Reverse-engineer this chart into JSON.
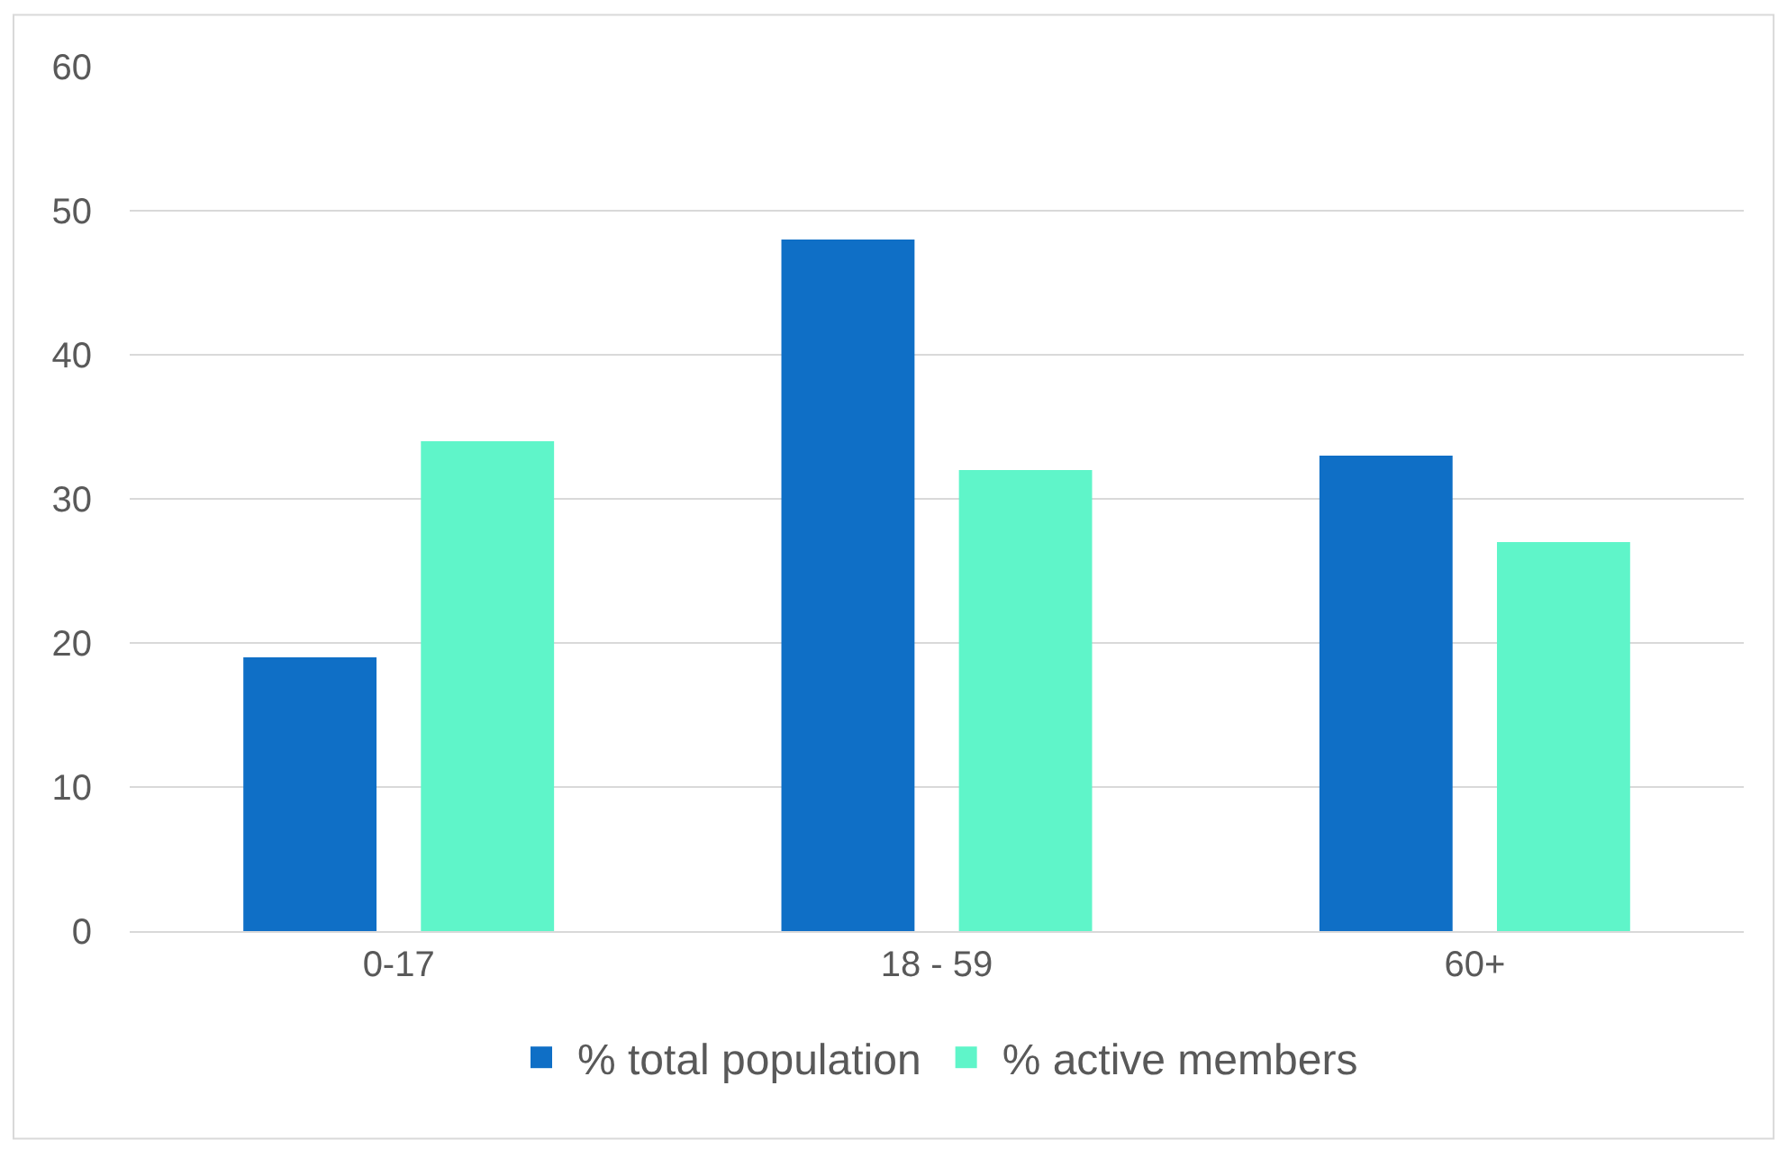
{
  "chart_data": {
    "type": "bar",
    "categories": [
      "0-17",
      "18 - 59",
      "60+"
    ],
    "series": [
      {
        "name": "% total population",
        "color": "#0f6fc6",
        "values": [
          19,
          48,
          33
        ]
      },
      {
        "name": "% active members",
        "color": "#5ff5c9",
        "values": [
          34,
          32,
          27
        ]
      }
    ],
    "ylim": [
      0,
      60
    ],
    "yticks": [
      0,
      10,
      20,
      30,
      40,
      50,
      60
    ],
    "grid": "y",
    "legend": "bottom"
  }
}
